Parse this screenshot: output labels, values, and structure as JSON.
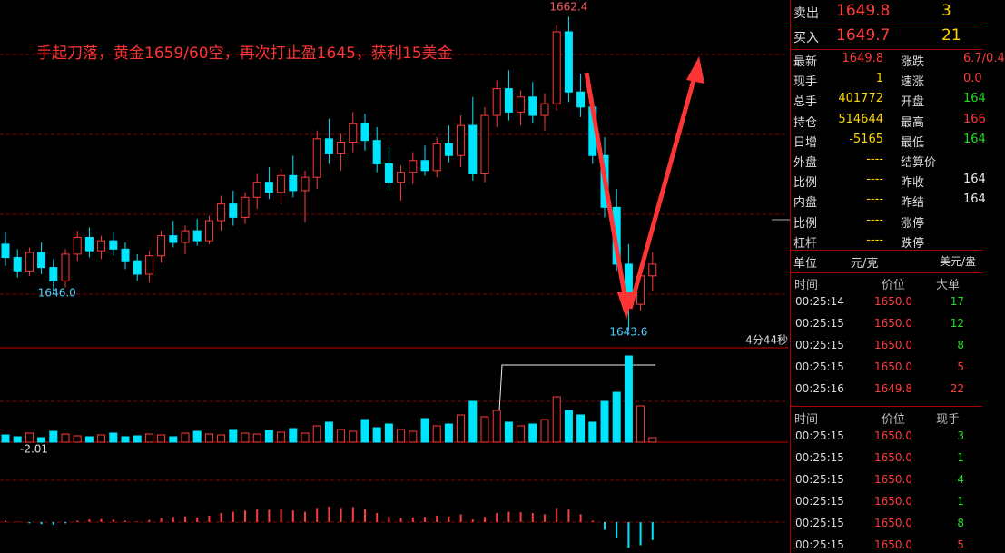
{
  "chart": {
    "title": "手起刀落，黄金1659/60空，再次打止盈1645，获利15美金",
    "high_label": "1662.4",
    "low_label": "1643.6",
    "left_low_label": "1646.0",
    "timer": "4分44秒",
    "macd_label": "-2.01",
    "ylim": [
      1642.6,
      1663.4
    ],
    "candles": [
      [
        1648.8,
        1649.5,
        1647.5,
        1648.0
      ],
      [
        1648.0,
        1648.5,
        1646.8,
        1647.2
      ],
      [
        1647.2,
        1648.6,
        1646.9,
        1648.3
      ],
      [
        1648.3,
        1648.9,
        1647.0,
        1647.4
      ],
      [
        1647.4,
        1647.9,
        1646.0,
        1646.6
      ],
      [
        1646.6,
        1648.5,
        1646.2,
        1648.2
      ],
      [
        1648.2,
        1649.6,
        1647.8,
        1649.2
      ],
      [
        1649.2,
        1649.8,
        1648.0,
        1648.4
      ],
      [
        1648.4,
        1649.3,
        1647.9,
        1649.0
      ],
      [
        1649.0,
        1649.5,
        1648.1,
        1648.5
      ],
      [
        1648.5,
        1648.9,
        1647.3,
        1647.8
      ],
      [
        1647.8,
        1648.2,
        1646.6,
        1647.0
      ],
      [
        1647.0,
        1648.4,
        1646.5,
        1648.1
      ],
      [
        1648.1,
        1649.6,
        1647.7,
        1649.3
      ],
      [
        1649.3,
        1650.2,
        1648.6,
        1648.9
      ],
      [
        1648.9,
        1649.9,
        1648.2,
        1649.6
      ],
      [
        1649.6,
        1650.3,
        1648.7,
        1649.0
      ],
      [
        1649.0,
        1650.5,
        1648.8,
        1650.2
      ],
      [
        1650.2,
        1651.7,
        1649.6,
        1651.2
      ],
      [
        1651.2,
        1652.0,
        1649.9,
        1650.4
      ],
      [
        1650.4,
        1651.9,
        1650.0,
        1651.6
      ],
      [
        1651.6,
        1653.0,
        1650.9,
        1652.5
      ],
      [
        1652.5,
        1653.4,
        1651.5,
        1651.9
      ],
      [
        1651.9,
        1653.3,
        1651.2,
        1652.9
      ],
      [
        1652.9,
        1654.1,
        1651.6,
        1652.0
      ],
      [
        1652.0,
        1653.2,
        1650.1,
        1652.8
      ],
      [
        1652.8,
        1655.6,
        1652.1,
        1655.1
      ],
      [
        1655.1,
        1656.3,
        1653.6,
        1654.2
      ],
      [
        1654.2,
        1655.4,
        1653.2,
        1654.9
      ],
      [
        1654.9,
        1656.7,
        1654.3,
        1656.0
      ],
      [
        1656.0,
        1656.6,
        1654.4,
        1655.0
      ],
      [
        1655.0,
        1655.8,
        1653.1,
        1653.6
      ],
      [
        1653.6,
        1654.6,
        1652.0,
        1652.5
      ],
      [
        1652.5,
        1653.5,
        1651.4,
        1653.1
      ],
      [
        1653.1,
        1654.3,
        1652.4,
        1653.8
      ],
      [
        1653.8,
        1654.7,
        1652.9,
        1653.2
      ],
      [
        1653.2,
        1655.2,
        1652.8,
        1654.8
      ],
      [
        1654.8,
        1655.9,
        1653.7,
        1654.1
      ],
      [
        1654.1,
        1656.5,
        1653.4,
        1655.9
      ],
      [
        1655.9,
        1657.6,
        1652.6,
        1653.0
      ],
      [
        1653.0,
        1657.0,
        1652.5,
        1656.5
      ],
      [
        1656.5,
        1658.6,
        1655.8,
        1658.1
      ],
      [
        1658.1,
        1659.2,
        1656.2,
        1656.7
      ],
      [
        1656.7,
        1658.0,
        1655.9,
        1657.6
      ],
      [
        1657.6,
        1658.5,
        1656.0,
        1656.5
      ],
      [
        1656.5,
        1657.8,
        1655.6,
        1657.2
      ],
      [
        1657.2,
        1661.9,
        1656.8,
        1661.5
      ],
      [
        1661.5,
        1662.4,
        1657.3,
        1657.9
      ],
      [
        1657.9,
        1659.0,
        1656.4,
        1657.0
      ],
      [
        1657.0,
        1657.6,
        1653.6,
        1654.1
      ],
      [
        1654.1,
        1655.2,
        1650.4,
        1651.0
      ],
      [
        1651.0,
        1652.1,
        1647.2,
        1647.6
      ],
      [
        1647.6,
        1648.8,
        1643.6,
        1645.2
      ],
      [
        1645.2,
        1647.4,
        1644.8,
        1646.9
      ],
      [
        1646.9,
        1648.3,
        1646.0,
        1647.6
      ]
    ],
    "volume_ylim": [
      0,
      100
    ],
    "volume": [
      8,
      6,
      10,
      5,
      12,
      9,
      7,
      6,
      8,
      10,
      6,
      7,
      9,
      8,
      6,
      10,
      12,
      9,
      8,
      14,
      10,
      9,
      13,
      11,
      15,
      10,
      18,
      22,
      14,
      12,
      25,
      16,
      20,
      14,
      12,
      26,
      18,
      20,
      30,
      45,
      28,
      35,
      22,
      18,
      20,
      25,
      50,
      35,
      30,
      22,
      45,
      55,
      95,
      40,
      5
    ],
    "macd_ylim": [
      -1.2,
      3.1
    ],
    "macd": [
      0.05,
      0.02,
      -0.05,
      -0.08,
      -0.1,
      -0.05,
      0.05,
      0.1,
      0.12,
      0.1,
      0.05,
      0.02,
      0.08,
      0.15,
      0.2,
      0.22,
      0.18,
      0.25,
      0.35,
      0.4,
      0.45,
      0.5,
      0.48,
      0.52,
      0.45,
      0.4,
      0.55,
      0.6,
      0.55,
      0.58,
      0.5,
      0.35,
      0.2,
      0.15,
      0.18,
      0.2,
      0.25,
      0.22,
      0.3,
      0.1,
      0.2,
      0.35,
      0.4,
      0.38,
      0.35,
      0.3,
      0.55,
      0.5,
      0.3,
      0.05,
      -0.3,
      -0.6,
      -1.0,
      -0.9,
      -0.7
    ]
  },
  "quote": {
    "ask": [
      "卖出",
      "1649.8",
      "3"
    ],
    "bid": [
      "买入",
      "1649.7",
      "21"
    ],
    "rows": [
      [
        "最新",
        "1649.8",
        "涨跌",
        "6.7/0.4"
      ],
      [
        "现手",
        "1",
        "速涨",
        "0.0"
      ],
      [
        "总手",
        "401772",
        "开盘",
        "164"
      ],
      [
        "持仓",
        "514644",
        "最高",
        "166"
      ],
      [
        "日增",
        "-5165",
        "最低",
        "164"
      ],
      [
        "外盘",
        "----",
        "结算价"
      ],
      [
        "比例",
        "----",
        "昨收",
        "164"
      ],
      [
        "内盘",
        "----",
        "昨结",
        "164"
      ],
      [
        "比例",
        "----",
        "涨停"
      ],
      [
        "杠杆",
        "----",
        "跌停"
      ]
    ],
    "value_colors": [
      [
        "#ff3b3b",
        "#ff3b3b"
      ],
      [
        "#ffd700",
        "#ff3b3b"
      ],
      [
        "#ffd700",
        "#22dd22"
      ],
      [
        "#ffd700",
        "#ff3b3b"
      ],
      [
        "#ffd700",
        "#22dd22"
      ],
      [
        "#ffd700"
      ],
      [
        "#ffd700",
        "#e8e8e8"
      ],
      [
        "#ffd700",
        "#e8e8e8"
      ],
      [
        "#ffd700"
      ],
      [
        "#ffd700"
      ]
    ]
  },
  "unit": {
    "label": "单位",
    "value": "元/克",
    "currency": "美元/盎"
  },
  "trades_big": {
    "headers": [
      "时间",
      "价位",
      "大单"
    ],
    "rows": [
      [
        "00:25:14",
        "1650.0",
        "17"
      ],
      [
        "00:25:15",
        "1650.0",
        "12"
      ],
      [
        "00:25:15",
        "1650.0",
        "8"
      ],
      [
        "00:25:15",
        "1650.0",
        "5"
      ],
      [
        "00:25:16",
        "1649.8",
        "22"
      ]
    ],
    "size_colors": [
      "#22dd22",
      "#22dd22",
      "#22dd22",
      "#ff3b3b",
      "#ff3b3b"
    ]
  },
  "trades": {
    "headers": [
      "时间",
      "价位",
      "现手"
    ],
    "rows": [
      [
        "00:25:15",
        "1650.0",
        "3"
      ],
      [
        "00:25:15",
        "1650.0",
        "1"
      ],
      [
        "00:25:15",
        "1650.0",
        "4"
      ],
      [
        "00:25:15",
        "1650.0",
        "1"
      ],
      [
        "00:25:15",
        "1650.0",
        "8"
      ],
      [
        "00:25:15",
        "1650.0",
        "5"
      ]
    ],
    "size_colors": [
      "#22dd22",
      "#22dd22",
      "#22dd22",
      "#22dd22",
      "#22dd22",
      "#ff3b3b"
    ]
  }
}
